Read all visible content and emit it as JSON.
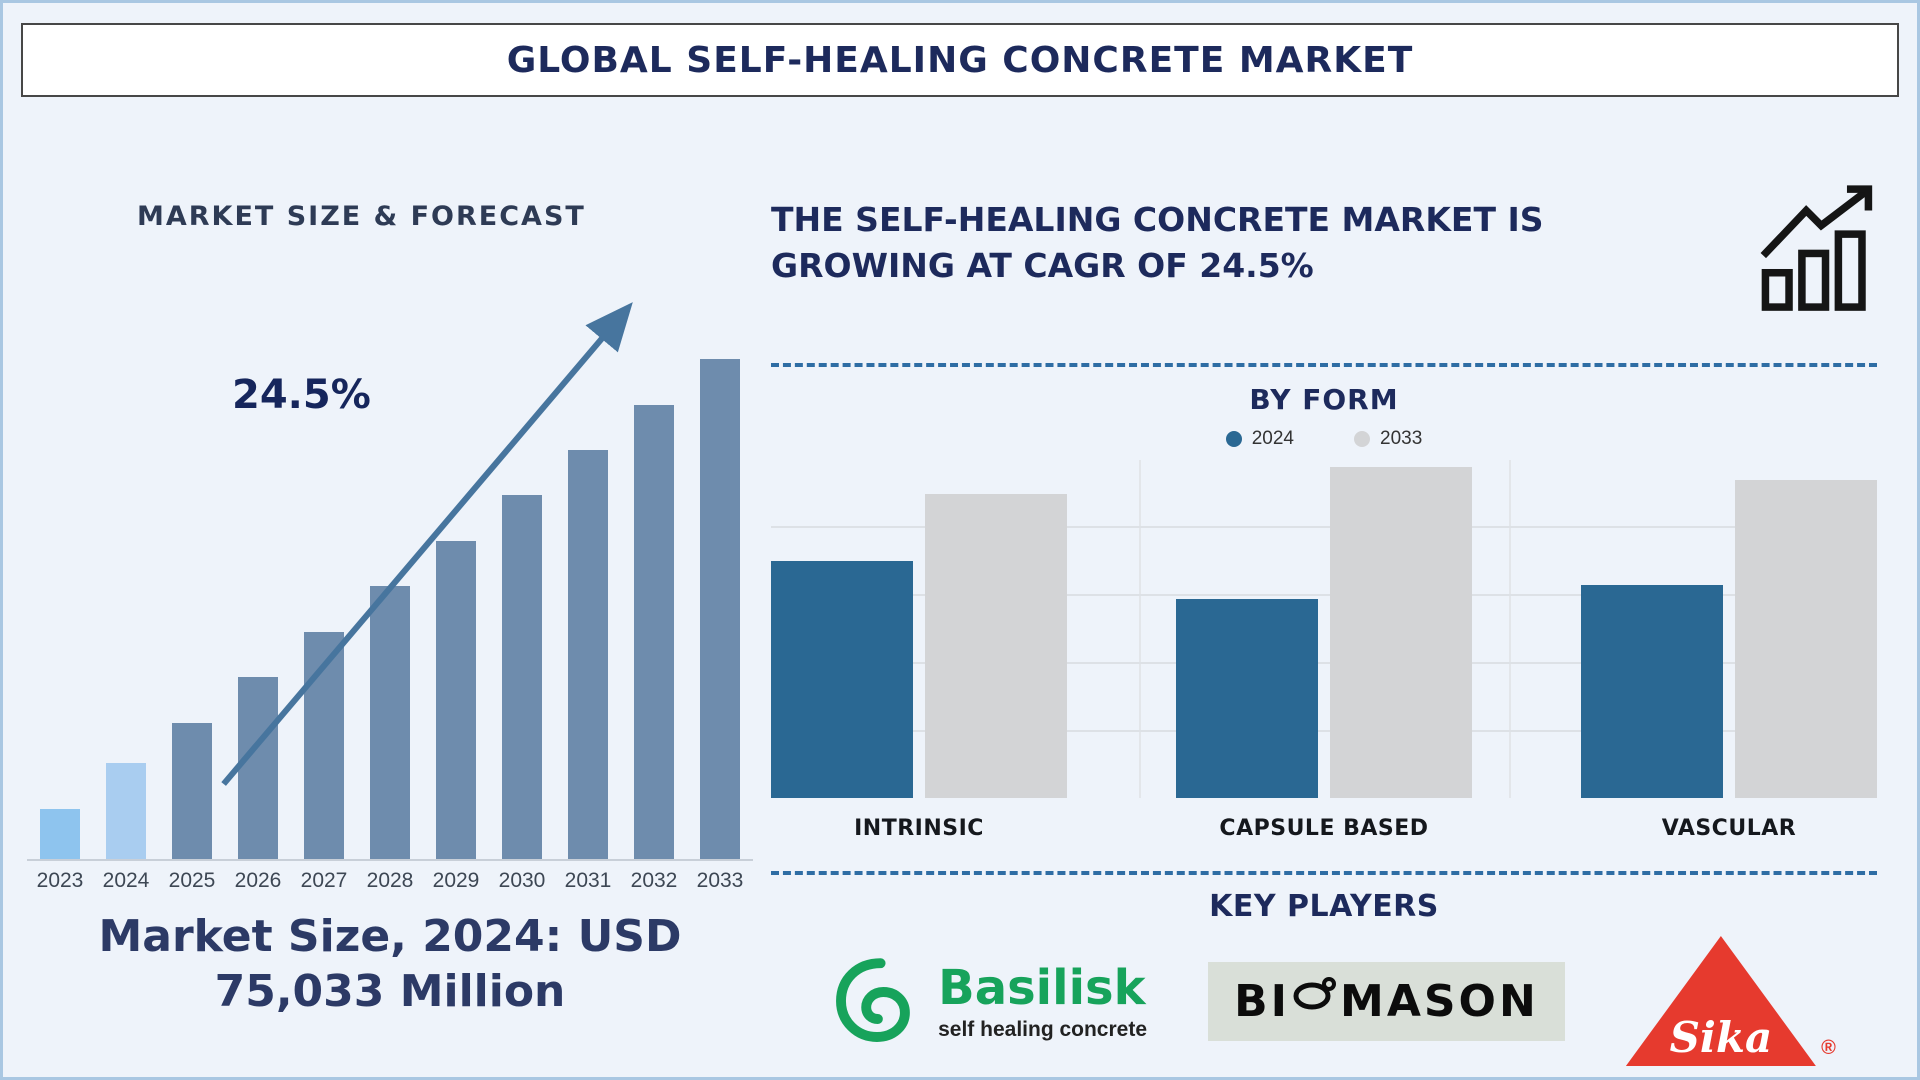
{
  "title": "GLOBAL SELF-HEALING CONCRETE MARKET",
  "colors": {
    "page_background": "#eef3fa",
    "page_border": "#a9c7e2",
    "heading_navy": "#1d2a5c",
    "dashed_divider": "#2e6da4",
    "growth_arrow": "#47759e",
    "bar_light_blue": "#a9cdf0",
    "bar_steel_blue": "#6e8cad",
    "series_2024": "#2a6893",
    "series_2033": "#d3d4d6",
    "basilisk_green": "#17a35b",
    "sika_red": "#e63a2e"
  },
  "left": {
    "heading": "MARKET SIZE & FORECAST",
    "cagr_label": "24.5%",
    "market_size_line1": "Market Size, 2024: USD",
    "market_size_line2": "75,033 Million"
  },
  "right": {
    "headline": "THE SELF-HEALING CONCRETE MARKET IS GROWING AT CAGR OF 24.5%",
    "by_form": {
      "heading": "BY FORM"
    },
    "key_players": {
      "heading": "KEY PLAYERS",
      "players": [
        {
          "name": "Basilisk",
          "tagline": "self healing concrete"
        },
        {
          "name": "BIOMASON",
          "part1": "BI",
          "part2": "MASON"
        },
        {
          "name": "Sika",
          "reg_mark": "®"
        }
      ]
    }
  },
  "chart_data": [
    {
      "type": "bar",
      "title": "MARKET SIZE & FORECAST",
      "categories": [
        "2023",
        "2024",
        "2025",
        "2026",
        "2027",
        "2028",
        "2029",
        "2030",
        "2031",
        "2032",
        "2033"
      ],
      "values": [
        10,
        19,
        27,
        36,
        45,
        54,
        63,
        72,
        81,
        90,
        99
      ],
      "value_unit": "relative-height-percent (no numeric axis shown)",
      "bar_colors": [
        "#8ec4ee",
        "#a9cdf0",
        "#6e8cad",
        "#6e8cad",
        "#6e8cad",
        "#6e8cad",
        "#6e8cad",
        "#6e8cad",
        "#6e8cad",
        "#6e8cad",
        "#6e8cad"
      ],
      "annotation": "24.5%",
      "known_point": {
        "year": "2024",
        "value_text": "USD 75,033 Million"
      },
      "xlabel": "",
      "ylabel": "",
      "grid": false
    },
    {
      "type": "bar",
      "title": "BY FORM",
      "categories": [
        "INTRINSIC",
        "CAPSULE BASED",
        "VASCULAR"
      ],
      "series": [
        {
          "name": "2024",
          "color": "#2a6893",
          "values": [
            70,
            59,
            63
          ]
        },
        {
          "name": "2033",
          "color": "#d3d4d6",
          "values": [
            90,
            98,
            94
          ]
        }
      ],
      "ylim": [
        0,
        100
      ],
      "value_unit": "relative-height-percent (no numeric axis shown)",
      "grid": true,
      "legend_position": "top"
    }
  ]
}
